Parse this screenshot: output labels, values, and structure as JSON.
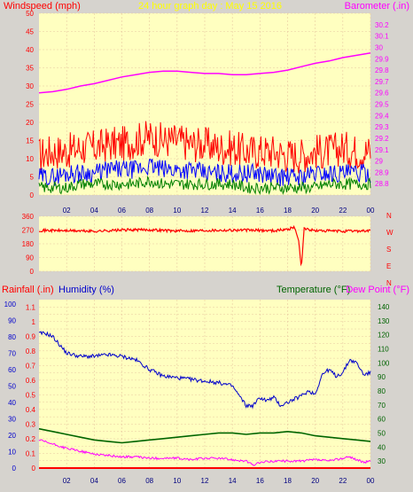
{
  "title": "24 hour graph day : May 15 2016",
  "colors": {
    "background": "#d6d3ce",
    "plot_bg": "#ffffc0",
    "grid": "#e8c8a0",
    "wind_gust": "#ff0000",
    "wind_avg": "#0000ff",
    "wind_low": "#008000",
    "barometer": "#ff00ff",
    "direction": "#ff0000",
    "humidity": "#0000cc",
    "temperature": "#006400",
    "dewpoint": "#ff00ff",
    "rainfall": "#ff0000",
    "x_tick": "#000080"
  },
  "chart_data": [
    {
      "type": "line",
      "panel": "wind-barometer",
      "y_left_label": "Windspeed (mph)",
      "y_right_label": "Barometer (.in)",
      "ylim_left": [
        0,
        50
      ],
      "ylim_right": [
        28.7,
        30.3
      ],
      "yticks_left": [
        "0",
        "5",
        "10",
        "15",
        "20",
        "25",
        "30",
        "35",
        "40",
        "45",
        "50"
      ],
      "yticks_right": [
        "28.8",
        "28.9",
        "29",
        "29.1",
        "29.2",
        "29.3",
        "29.4",
        "29.5",
        "29.6",
        "29.7",
        "29.8",
        "29.9",
        "30",
        "30.1",
        "30.2"
      ],
      "xticks": [
        "02",
        "04",
        "06",
        "08",
        "10",
        "12",
        "14",
        "16",
        "18",
        "20",
        "22",
        "00"
      ],
      "xlim": [
        0,
        24
      ],
      "series": [
        {
          "key": "barometer",
          "axis": "right",
          "x": [
            0,
            1,
            2,
            3,
            4,
            5,
            6,
            7,
            8,
            9,
            10,
            11,
            12,
            13,
            14,
            15,
            16,
            17,
            18,
            19,
            20,
            21,
            22,
            23,
            24
          ],
          "values": [
            29.6,
            29.61,
            29.63,
            29.66,
            29.68,
            29.71,
            29.74,
            29.76,
            29.78,
            29.79,
            29.79,
            29.78,
            29.77,
            29.77,
            29.76,
            29.76,
            29.77,
            29.78,
            29.8,
            29.83,
            29.86,
            29.88,
            29.91,
            29.93,
            29.95
          ]
        },
        {
          "key": "wind_gust",
          "axis": "left",
          "x": [
            0,
            1,
            2,
            3,
            4,
            5,
            6,
            7,
            8,
            9,
            10,
            11,
            12,
            13,
            14,
            15,
            16,
            17,
            18,
            19,
            20,
            21,
            22,
            23,
            24
          ],
          "values": [
            11,
            12,
            12,
            13,
            13,
            14,
            14,
            15,
            16,
            15,
            15,
            14,
            14,
            13,
            13,
            12,
            12,
            12,
            11,
            11,
            12,
            12,
            13,
            12,
            12
          ]
        },
        {
          "key": "wind_avg",
          "axis": "left",
          "x": [
            0,
            1,
            2,
            3,
            4,
            5,
            6,
            7,
            8,
            9,
            10,
            11,
            12,
            13,
            14,
            15,
            16,
            17,
            18,
            19,
            20,
            21,
            22,
            23,
            24
          ],
          "values": [
            5,
            5,
            6,
            6,
            6,
            7,
            7,
            7,
            8,
            7,
            7,
            7,
            6,
            6,
            6,
            6,
            6,
            5,
            5,
            5,
            6,
            6,
            6,
            6,
            6
          ]
        },
        {
          "key": "wind_low",
          "axis": "left",
          "x": [
            0,
            1,
            2,
            3,
            4,
            5,
            6,
            7,
            8,
            9,
            10,
            11,
            12,
            13,
            14,
            15,
            16,
            17,
            18,
            19,
            20,
            21,
            22,
            23,
            24
          ],
          "values": [
            2,
            2,
            2,
            3,
            3,
            3,
            3,
            3,
            4,
            3,
            3,
            3,
            3,
            3,
            3,
            2,
            2,
            2,
            2,
            2,
            2,
            3,
            3,
            3,
            3
          ]
        }
      ]
    },
    {
      "type": "line",
      "panel": "wind-direction",
      "ylim": [
        0,
        360
      ],
      "yticks": [
        "0",
        "90",
        "180",
        "270",
        "360"
      ],
      "compass": [
        "N",
        "W",
        "S",
        "E",
        "N"
      ],
      "xticks": [
        "02",
        "04",
        "06",
        "08",
        "10",
        "12",
        "14",
        "16",
        "18",
        "20",
        "22",
        "00"
      ],
      "xlim": [
        0,
        24
      ],
      "series": [
        {
          "key": "direction",
          "x": [
            0,
            2,
            4,
            6,
            8,
            10,
            12,
            14,
            16,
            17,
            18,
            18.5,
            18.8,
            19,
            19.2,
            19.5,
            20,
            22,
            24
          ],
          "values": [
            268,
            266,
            262,
            270,
            272,
            264,
            268,
            270,
            268,
            266,
            275,
            290,
            200,
            20,
            285,
            272,
            266,
            262,
            266
          ]
        }
      ]
    },
    {
      "type": "line",
      "panel": "humidity-temperature",
      "y_left_label": "Rainfall (.in)",
      "y_left2_label": "Humidity (%)",
      "y_right_label": "Temperature (°F)",
      "y_right2_label": "Dew Point (°F)",
      "ylim_rain": [
        0,
        1.15
      ],
      "ylim_humidity": [
        0,
        100
      ],
      "ylim_temp": [
        25,
        145
      ],
      "yticks_rain": [
        "0",
        "0.05",
        "0.1",
        "0.15",
        "0.2",
        "0.25",
        "0.3",
        "0.35",
        "0.4",
        "0.45",
        "0.5",
        "0.55",
        "0.6",
        "0.65",
        "0.7",
        "0.75",
        "0.8",
        "0.85",
        "0.9",
        "0.95",
        "1",
        "1.05",
        "1.1"
      ],
      "yticks_humidity": [
        "0",
        "10",
        "20",
        "30",
        "40",
        "50",
        "60",
        "70",
        "80",
        "90",
        "100"
      ],
      "yticks_temp": [
        "30",
        "40",
        "50",
        "60",
        "70",
        "80",
        "90",
        "100",
        "110",
        "120",
        "130",
        "140"
      ],
      "xticks": [
        "02",
        "04",
        "06",
        "08",
        "10",
        "12",
        "14",
        "16",
        "18",
        "20",
        "22",
        "00"
      ],
      "xlim": [
        0,
        24
      ],
      "series": [
        {
          "key": "humidity",
          "axis": "humidity",
          "x": [
            0,
            0.5,
            1,
            2,
            3,
            4,
            5,
            6,
            7,
            8,
            9,
            10,
            11,
            12,
            13,
            14,
            14.5,
            15,
            15.5,
            16,
            16.5,
            17,
            17.5,
            18,
            18.5,
            19,
            19.5,
            20,
            20.5,
            21,
            21.5,
            22,
            22.5,
            23,
            23.5,
            24
          ],
          "values": [
            82,
            82,
            80,
            70,
            68,
            68,
            69,
            68,
            66,
            60,
            56,
            55,
            54,
            53,
            52,
            50,
            44,
            38,
            38,
            43,
            41,
            43,
            38,
            40,
            42,
            44,
            47,
            45,
            57,
            60,
            56,
            58,
            66,
            64,
            57,
            58
          ]
        },
        {
          "key": "temperature",
          "axis": "temp",
          "x": [
            0,
            1,
            2,
            3,
            4,
            5,
            6,
            7,
            8,
            9,
            10,
            11,
            12,
            13,
            14,
            15,
            16,
            17,
            18,
            19,
            20,
            21,
            22,
            23,
            24
          ],
          "values": [
            53,
            51,
            49,
            47,
            45,
            44,
            43,
            44,
            45,
            46,
            47,
            48,
            49,
            50,
            50,
            49,
            50,
            50,
            51,
            50,
            48,
            47,
            46,
            45,
            44
          ]
        },
        {
          "key": "dewpoint",
          "axis": "temp",
          "x": [
            0,
            1,
            2,
            3,
            4,
            5,
            6,
            7,
            8,
            9,
            10,
            11,
            12,
            13,
            14,
            15,
            15.5,
            16,
            17,
            18,
            19,
            20,
            21,
            22,
            22.5,
            23,
            23.5,
            24
          ],
          "values": [
            45,
            42,
            39,
            37,
            35,
            34,
            33,
            33,
            32,
            32,
            32,
            31,
            32,
            32,
            31,
            30,
            27,
            29,
            30,
            30,
            30,
            31,
            30,
            32,
            33,
            31,
            29,
            30
          ]
        },
        {
          "key": "rainfall",
          "axis": "rain",
          "x": [
            0,
            24
          ],
          "values": [
            0,
            0
          ]
        }
      ]
    }
  ]
}
